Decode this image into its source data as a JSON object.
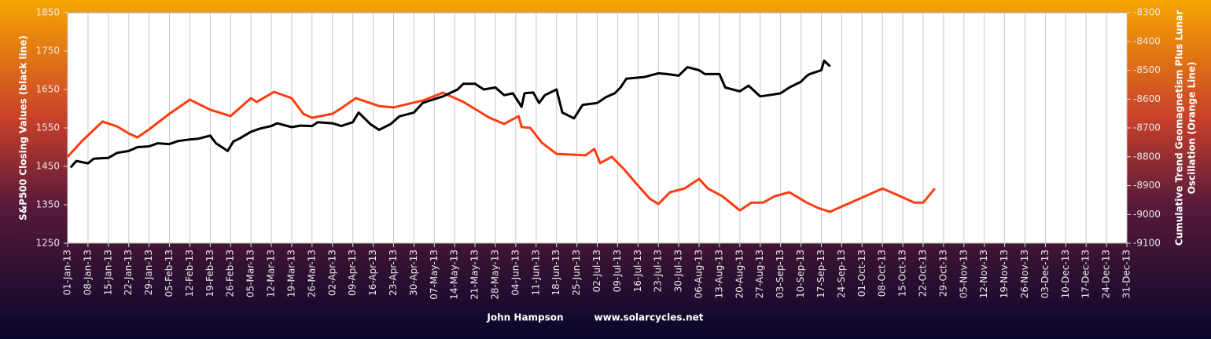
{
  "chart_data": {
    "type": "line",
    "ylabel": "S&P500 Closing  Values (black line)",
    "y2label": [
      "Cumulative Trend Geomagnetism Plus Lunar",
      "Oscillation (Orange Line)"
    ],
    "credit": "John Hampson",
    "site": "www.solarcycles.net",
    "xlim": [
      "2013-01-01",
      "2013-12-31"
    ],
    "xticks": [
      {
        "value": "2013-01-01",
        "label": "01-Jan-13"
      },
      {
        "value": "2013-01-08",
        "label": "08-Jan-13"
      },
      {
        "value": "2013-01-15",
        "label": "15-Jan-13"
      },
      {
        "value": "2013-01-22",
        "label": "22-Jan-13"
      },
      {
        "value": "2013-01-29",
        "label": "29-Jan-13"
      },
      {
        "value": "2013-02-05",
        "label": "05-Feb-13"
      },
      {
        "value": "2013-02-12",
        "label": "12-Feb-13"
      },
      {
        "value": "2013-02-19",
        "label": "19-Feb-13"
      },
      {
        "value": "2013-02-26",
        "label": "26-Feb-13"
      },
      {
        "value": "2013-03-05",
        "label": "05-Mar-13"
      },
      {
        "value": "2013-03-12",
        "label": "12-Mar-13"
      },
      {
        "value": "2013-03-19",
        "label": "19-Mar-13"
      },
      {
        "value": "2013-03-26",
        "label": "26-Mar-13"
      },
      {
        "value": "2013-04-02",
        "label": "02-Apr-13"
      },
      {
        "value": "2013-04-09",
        "label": "09-Apr-13"
      },
      {
        "value": "2013-04-16",
        "label": "16-Apr-13"
      },
      {
        "value": "2013-04-23",
        "label": "23-Apr-13"
      },
      {
        "value": "2013-04-30",
        "label": "30-Apr-13"
      },
      {
        "value": "2013-05-07",
        "label": "07-May-13"
      },
      {
        "value": "2013-05-14",
        "label": "14-May-13"
      },
      {
        "value": "2013-05-21",
        "label": "21-May-13"
      },
      {
        "value": "2013-05-28",
        "label": "28-May-13"
      },
      {
        "value": "2013-06-04",
        "label": "04-Jun-13"
      },
      {
        "value": "2013-06-11",
        "label": "11-Jun-13"
      },
      {
        "value": "2013-06-18",
        "label": "18-Jun-13"
      },
      {
        "value": "2013-06-25",
        "label": "25-Jun-13"
      },
      {
        "value": "2013-07-02",
        "label": "02-Jul-13"
      },
      {
        "value": "2013-07-09",
        "label": "09-Jul-13"
      },
      {
        "value": "2013-07-16",
        "label": "16-Jul-13"
      },
      {
        "value": "2013-07-23",
        "label": "23-Jul-13"
      },
      {
        "value": "2013-07-30",
        "label": "30-Jul-13"
      },
      {
        "value": "2013-08-06",
        "label": "06-Aug-13"
      },
      {
        "value": "2013-08-13",
        "label": "13-Aug-13"
      },
      {
        "value": "2013-08-20",
        "label": "20-Aug-13"
      },
      {
        "value": "2013-08-27",
        "label": "27-Aug-13"
      },
      {
        "value": "2013-09-03",
        "label": "03-Sep-13"
      },
      {
        "value": "2013-09-10",
        "label": "10-Sep-13"
      },
      {
        "value": "2013-09-17",
        "label": "17-Sep-13"
      },
      {
        "value": "2013-09-24",
        "label": "24-Sep-13"
      },
      {
        "value": "2013-10-01",
        "label": "01-Oct-13"
      },
      {
        "value": "2013-10-08",
        "label": "08-Oct-13"
      },
      {
        "value": "2013-10-15",
        "label": "15-Oct-13"
      },
      {
        "value": "2013-10-22",
        "label": "22-Oct-13"
      },
      {
        "value": "2013-10-29",
        "label": "29-Oct-13"
      },
      {
        "value": "2013-11-05",
        "label": "05-Nov-13"
      },
      {
        "value": "2013-11-12",
        "label": "12-Nov-13"
      },
      {
        "value": "2013-11-19",
        "label": "19-Nov-13"
      },
      {
        "value": "2013-11-26",
        "label": "26-Nov-13"
      },
      {
        "value": "2013-12-03",
        "label": "03-Dec-13"
      },
      {
        "value": "2013-12-10",
        "label": "10-Dec-13"
      },
      {
        "value": "2013-12-17",
        "label": "17-Dec-13"
      },
      {
        "value": "2013-12-24",
        "label": "24-Dec-13"
      },
      {
        "value": "2013-12-31",
        "label": "31-Dec-13"
      }
    ],
    "ylim": [
      1250,
      1850
    ],
    "yticks": [
      1250,
      1350,
      1450,
      1550,
      1650,
      1750,
      1850
    ],
    "y2lim": [
      -9100,
      -8300
    ],
    "y2ticks": [
      -9100,
      -9000,
      -8900,
      -8800,
      -8700,
      -8600,
      -8500,
      -8400,
      -8300
    ],
    "grid": "x",
    "series": [
      {
        "color": "#000000",
        "x": [
          "2013-01-02",
          "2013-01-04",
          "2013-01-08",
          "2013-01-10",
          "2013-01-15",
          "2013-01-18",
          "2013-01-22",
          "2013-01-25",
          "2013-01-29",
          "2013-02-01",
          "2013-02-05",
          "2013-02-08",
          "2013-02-12",
          "2013-02-15",
          "2013-02-19",
          "2013-02-21",
          "2013-02-25",
          "2013-02-27",
          "2013-03-01",
          "2013-03-05",
          "2013-03-08",
          "2013-03-12",
          "2013-03-14",
          "2013-03-19",
          "2013-03-22",
          "2013-03-26",
          "2013-03-28",
          "2013-04-02",
          "2013-04-05",
          "2013-04-09",
          "2013-04-11",
          "2013-04-15",
          "2013-04-18",
          "2013-04-22",
          "2013-04-25",
          "2013-04-30",
          "2013-05-03",
          "2013-05-07",
          "2013-05-10",
          "2013-05-15",
          "2013-05-17",
          "2013-05-21",
          "2013-05-24",
          "2013-05-28",
          "2013-05-31",
          "2013-06-03",
          "2013-06-06",
          "2013-06-07",
          "2013-06-10",
          "2013-06-12",
          "2013-06-14",
          "2013-06-18",
          "2013-06-20",
          "2013-06-24",
          "2013-06-27",
          "2013-07-02",
          "2013-07-05",
          "2013-07-08",
          "2013-07-10",
          "2013-07-12",
          "2013-07-18",
          "2013-07-23",
          "2013-07-26",
          "2013-07-30",
          "2013-08-02",
          "2013-08-06",
          "2013-08-08",
          "2013-08-13",
          "2013-08-15",
          "2013-08-20",
          "2013-08-23",
          "2013-08-27",
          "2013-08-30",
          "2013-09-03",
          "2013-09-06",
          "2013-09-10",
          "2013-09-12",
          "2013-09-13",
          "2013-09-17",
          "2013-09-18",
          "2013-09-20"
        ],
        "values": [
          1447,
          1464,
          1458,
          1470,
          1472,
          1485,
          1490,
          1500,
          1502,
          1510,
          1508,
          1516,
          1520,
          1522,
          1530,
          1510,
          1490,
          1515,
          1522,
          1540,
          1548,
          1555,
          1562,
          1552,
          1556,
          1555,
          1565,
          1562,
          1555,
          1565,
          1590,
          1560,
          1545,
          1560,
          1580,
          1590,
          1615,
          1625,
          1632,
          1650,
          1665,
          1665,
          1650,
          1655,
          1635,
          1640,
          1605,
          1640,
          1642,
          1615,
          1635,
          1650,
          1590,
          1575,
          1610,
          1615,
          1630,
          1640,
          1655,
          1678,
          1682,
          1692,
          1690,
          1686,
          1708,
          1700,
          1690,
          1690,
          1655,
          1645,
          1660,
          1632,
          1635,
          1640,
          1655,
          1670,
          1685,
          1690,
          1700,
          1725,
          1710
        ]
      },
      {
        "color": "#ff3b10",
        "axis": "y2",
        "x": [
          "2013-01-01",
          "2013-01-06",
          "2013-01-13",
          "2013-01-18",
          "2013-01-22",
          "2013-01-25",
          "2013-01-29",
          "2013-02-05",
          "2013-02-12",
          "2013-02-19",
          "2013-02-26",
          "2013-03-05",
          "2013-03-07",
          "2013-03-13",
          "2013-03-19",
          "2013-03-23",
          "2013-03-26",
          "2013-04-02",
          "2013-04-05",
          "2013-04-10",
          "2013-04-18",
          "2013-04-23",
          "2013-05-03",
          "2013-05-10",
          "2013-05-17",
          "2013-05-26",
          "2013-05-31",
          "2013-06-05",
          "2013-06-06",
          "2013-06-09",
          "2013-06-13",
          "2013-06-18",
          "2013-06-28",
          "2013-07-01",
          "2013-07-03",
          "2013-07-07",
          "2013-07-11",
          "2013-07-15",
          "2013-07-20",
          "2013-07-23",
          "2013-07-27",
          "2013-08-01",
          "2013-08-06",
          "2013-08-09",
          "2013-08-14",
          "2013-08-20",
          "2013-08-24",
          "2013-08-28",
          "2013-09-01",
          "2013-09-06",
          "2013-09-12",
          "2013-09-16",
          "2013-09-20",
          "2013-09-26",
          "2013-10-02",
          "2013-10-08",
          "2013-10-13",
          "2013-10-19",
          "2013-10-22",
          "2013-10-26"
        ],
        "values": [
          -8800,
          -8745,
          -8678,
          -8695,
          -8719,
          -8733,
          -8705,
          -8651,
          -8602,
          -8637,
          -8659,
          -8597,
          -8610,
          -8575,
          -8597,
          -8651,
          -8665,
          -8651,
          -8632,
          -8597,
          -8624,
          -8629,
          -8605,
          -8578,
          -8610,
          -8665,
          -8686,
          -8659,
          -8697,
          -8700,
          -8752,
          -8790,
          -8795,
          -8773,
          -8822,
          -8800,
          -8841,
          -8888,
          -8945,
          -8964,
          -8923,
          -8910,
          -8877,
          -8910,
          -8937,
          -8986,
          -8959,
          -8959,
          -8937,
          -8923,
          -8959,
          -8978,
          -8991,
          -8964,
          -8937,
          -8910,
          -8932,
          -8959,
          -8959,
          -8910
        ]
      }
    ]
  }
}
